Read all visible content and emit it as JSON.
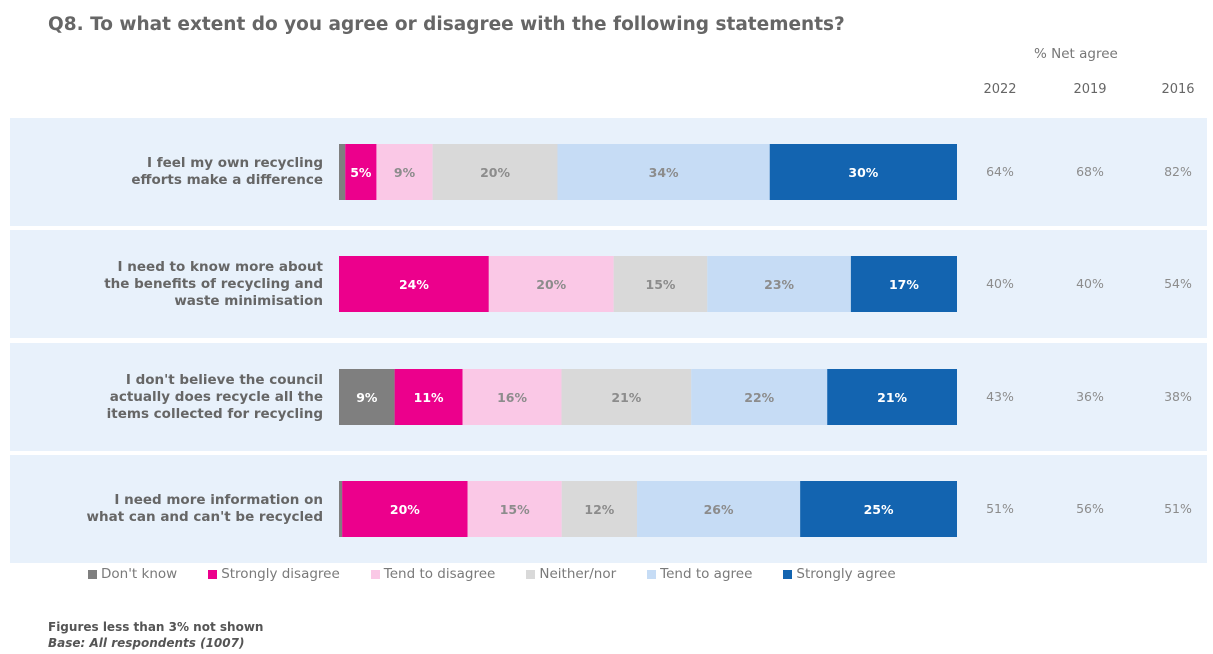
{
  "chart_data": {
    "type": "bar",
    "stacked": true,
    "orientation": "horizontal",
    "title": "Q8. To what extent do you agree or disagree with the following statements?",
    "categories": [
      [
        "I feel my own recycling",
        "efforts make a difference"
      ],
      [
        "I need to know more about",
        "the benefits of recycling and",
        "waste minimisation"
      ],
      [
        "I don't believe the council",
        "actually does recycle all the",
        "items collected for recycling"
      ],
      [
        "I need more information on",
        "what can and can't be recycled"
      ]
    ],
    "series": [
      {
        "name": "Don't know",
        "color": "#7f7f7f",
        "label_color": "#ffffff",
        "values": [
          1,
          0,
          9,
          0.5
        ],
        "labels": [
          "",
          "",
          "9%",
          ""
        ]
      },
      {
        "name": "Strongly disagree",
        "color": "#ec008c",
        "label_color": "#ffffff",
        "values": [
          5,
          24,
          11,
          20
        ],
        "labels": [
          "5%",
          "24%",
          "11%",
          "20%"
        ]
      },
      {
        "name": "Tend to disagree",
        "color": "#fac8e6",
        "label_color": "#8c8c8c",
        "values": [
          9,
          20,
          16,
          15
        ],
        "labels": [
          "9%",
          "20%",
          "16%",
          "15%"
        ]
      },
      {
        "name": "Neither/nor",
        "color": "#d9d9d9",
        "label_color": "#8c8c8c",
        "values": [
          20,
          15,
          21,
          12
        ],
        "labels": [
          "20%",
          "15%",
          "21%",
          "12%"
        ]
      },
      {
        "name": "Tend to agree",
        "color": "#c6dcf5",
        "label_color": "#8c8c8c",
        "values": [
          34,
          23,
          22,
          26
        ],
        "labels": [
          "34%",
          "23%",
          "22%",
          "26%"
        ]
      },
      {
        "name": "Strongly agree",
        "color": "#1364b0",
        "label_color": "#ffffff",
        "values": [
          30,
          17,
          21,
          25
        ],
        "labels": [
          "30%",
          "17%",
          "21%",
          "25%"
        ]
      }
    ],
    "net_agree": {
      "header": "% Net agree",
      "years": [
        "2022",
        "2019",
        "2016"
      ],
      "rows": [
        [
          "64%",
          "68%",
          "82%"
        ],
        [
          "40%",
          "40%",
          "54%"
        ],
        [
          "43%",
          "36%",
          "38%"
        ],
        [
          "51%",
          "56%",
          "51%"
        ]
      ]
    },
    "legend_position": "bottom"
  },
  "notes": {
    "footnote": "Figures less than 3% not shown",
    "base": "Base: All respondents (1007)"
  },
  "colors": {
    "band_background": "#e8f1fb"
  }
}
